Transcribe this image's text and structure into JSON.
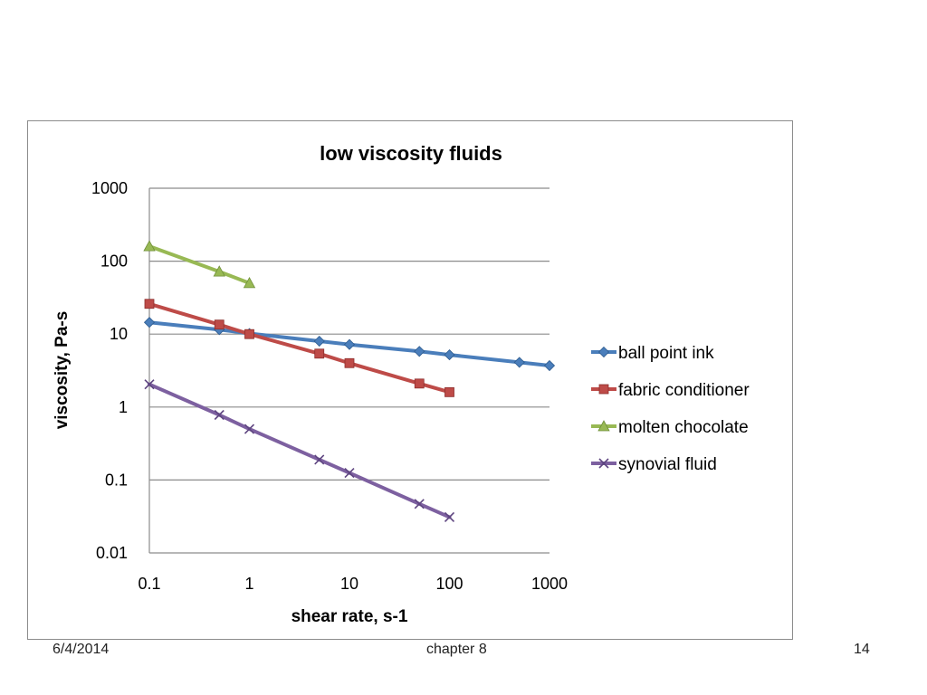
{
  "footer": {
    "date": "6/4/2014",
    "chapter": "chapter 8",
    "page": "14"
  },
  "chart_data": {
    "type": "line",
    "title": "low viscosity fluids",
    "xlabel": "shear rate, s-1",
    "ylabel": "viscosity, Pa-s",
    "x_scale": "log",
    "y_scale": "log",
    "xlim": [
      0.1,
      1000
    ],
    "ylim": [
      0.01,
      1000
    ],
    "x_ticks": [
      "0.1",
      "1",
      "10",
      "100",
      "1000"
    ],
    "y_ticks": [
      "0.01",
      "0.1",
      "1",
      "10",
      "100",
      "1000"
    ],
    "grid": "horizontal",
    "legend_position": "right",
    "series": [
      {
        "name": "ball point ink",
        "color": "#4a7ebb",
        "marker": "diamond",
        "x": [
          0.1,
          0.5,
          1,
          5,
          10,
          50,
          100,
          500,
          1000
        ],
        "y": [
          14.5,
          11.5,
          10.2,
          8,
          7.2,
          5.8,
          5.2,
          4.1,
          3.7
        ]
      },
      {
        "name": "fabric conditioner",
        "color": "#be4b48",
        "marker": "square",
        "x": [
          0.1,
          0.5,
          1,
          5,
          10,
          50,
          100
        ],
        "y": [
          26,
          13.5,
          10,
          5.4,
          4,
          2.1,
          1.6
        ]
      },
      {
        "name": "molten chocolate",
        "color": "#98b954",
        "marker": "triangle",
        "x": [
          0.1,
          0.5,
          1
        ],
        "y": [
          160,
          72,
          50
        ]
      },
      {
        "name": "synovial fluid",
        "color": "#7d60a0",
        "marker": "x",
        "x": [
          0.1,
          0.5,
          1,
          5,
          10,
          50,
          100
        ],
        "y": [
          2.05,
          0.78,
          0.5,
          0.19,
          0.125,
          0.047,
          0.031
        ]
      }
    ]
  }
}
